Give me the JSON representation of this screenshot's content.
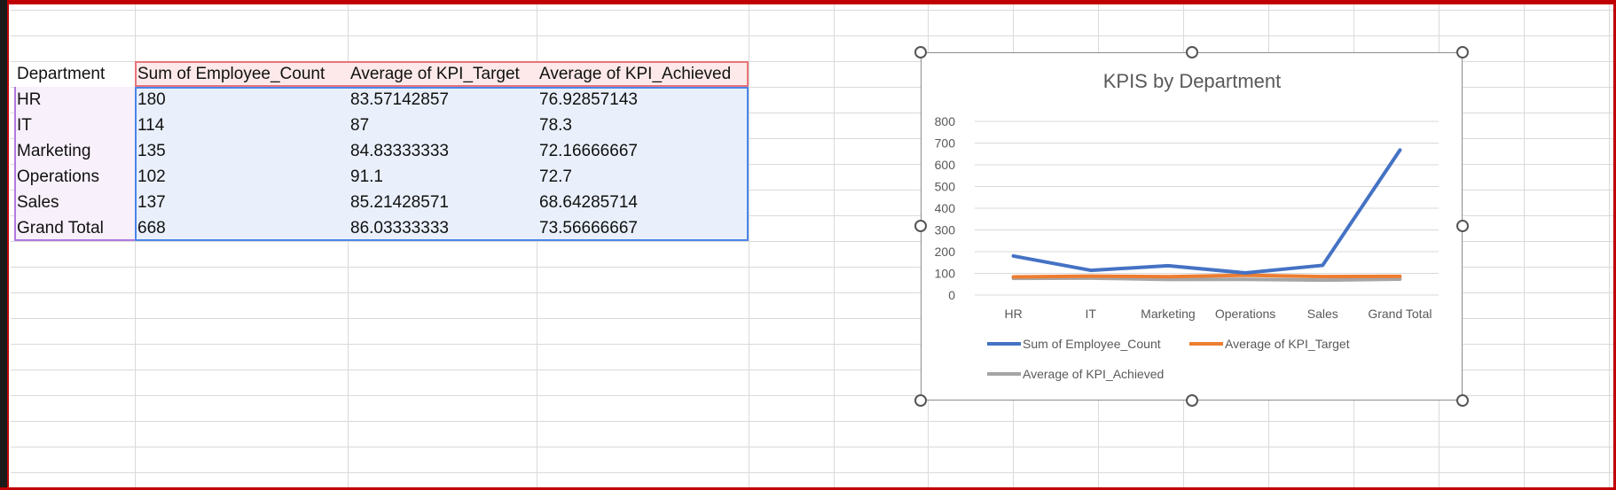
{
  "pivot": {
    "headers": [
      "Department",
      "Sum of Employee_Count",
      "Average of KPI_Target",
      "Average of KPI_Achieved"
    ],
    "rows": [
      [
        "HR",
        "180",
        "83.57142857",
        "76.92857143"
      ],
      [
        "IT",
        "114",
        "87",
        "78.3"
      ],
      [
        "Marketing",
        "135",
        "84.83333333",
        "72.16666667"
      ],
      [
        "Operations",
        "102",
        "91.1",
        "72.7"
      ],
      [
        "Sales",
        "137",
        "85.21428571",
        "68.64285714"
      ],
      [
        "Grand Total",
        "668",
        "86.03333333",
        "73.56666667"
      ]
    ]
  },
  "chart_data": {
    "type": "line",
    "title": "KPIS by Department",
    "categories": [
      "HR",
      "IT",
      "Marketing",
      "Operations",
      "Sales",
      "Grand Total"
    ],
    "ylim": [
      0,
      800
    ],
    "yticks": [
      "0",
      "100",
      "200",
      "300",
      "400",
      "500",
      "600",
      "700",
      "800"
    ],
    "grid": true,
    "legend": "bottom",
    "series": [
      {
        "name": "Sum of Employee_Count",
        "values": [
          180,
          114,
          135,
          102,
          137,
          668
        ],
        "color": "#4472c4"
      },
      {
        "name": "Average of KPI_Target",
        "values": [
          83.57142857,
          87,
          84.83333333,
          91.1,
          85.21428571,
          86.03333333
        ],
        "color": "#ed7d31"
      },
      {
        "name": "Average of KPI_Achieved",
        "values": [
          76.92857143,
          78.3,
          72.16666667,
          72.7,
          68.64285714,
          73.56666667
        ],
        "color": "#a5a5a5"
      }
    ]
  }
}
